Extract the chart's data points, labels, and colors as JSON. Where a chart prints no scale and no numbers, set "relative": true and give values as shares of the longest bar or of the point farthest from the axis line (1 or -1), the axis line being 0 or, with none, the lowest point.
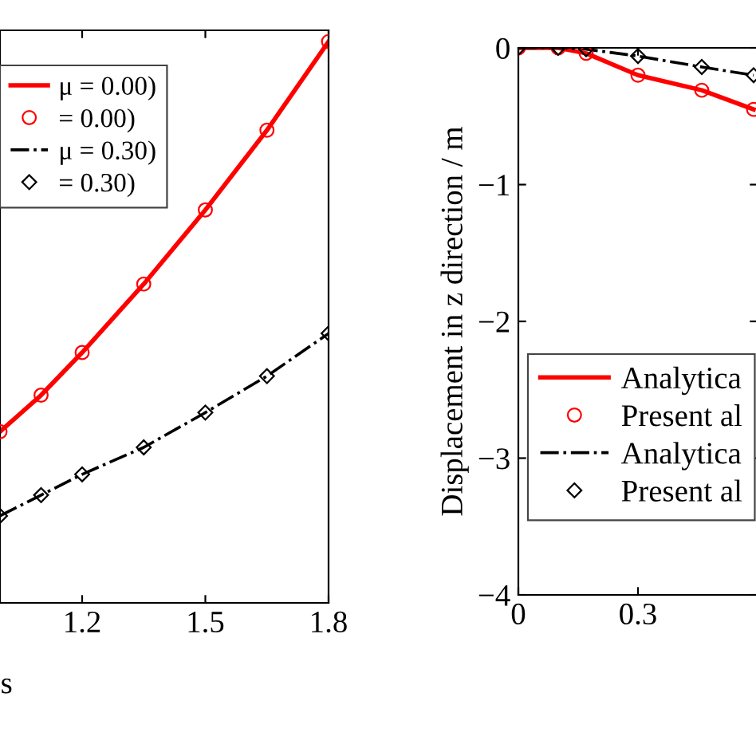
{
  "chart_data": [
    {
      "type": "line",
      "xlabel": "s",
      "xlim": [
        1.0,
        1.8
      ],
      "xticks": [
        1.2,
        1.5,
        1.8
      ],
      "relative": true,
      "tick_labels": "x",
      "legend": "top left",
      "series": [
        {
          "name": "μ = 0.00)",
          "color": "#ff0000",
          "line_style": "solid",
          "marker": "none",
          "x": [
            1.0,
            1.1,
            1.2,
            1.35,
            1.5,
            1.65,
            1.8
          ],
          "values": [
            0.305,
            0.37,
            0.446,
            0.568,
            0.7,
            0.842,
            1
          ]
        },
        {
          "name": "= 0.00)",
          "type": "scatter",
          "color": "#ff0000",
          "marker": "circle",
          "x": [
            1.0,
            1.1,
            1.2,
            1.35,
            1.5,
            1.65,
            1.8
          ],
          "values": [
            0.305,
            0.37,
            0.446,
            0.568,
            0.7,
            0.842,
            1
          ]
        },
        {
          "name": "μ = 0.30)",
          "color": "#000000",
          "line_style": "dashdot",
          "marker": "none",
          "x": [
            1.0,
            1.1,
            1.2,
            1.35,
            1.5,
            1.65,
            1.8
          ],
          "values": [
            0.155,
            0.192,
            0.229,
            0.277,
            0.339,
            0.404,
            0.48
          ]
        },
        {
          "name": "= 0.30)",
          "type": "scatter",
          "color": "#000000",
          "marker": "diamond",
          "x": [
            1.0,
            1.1,
            1.2,
            1.35,
            1.5,
            1.65,
            1.8
          ],
          "values": [
            0.155,
            0.192,
            0.229,
            0.277,
            0.339,
            0.404,
            0.48
          ]
        }
      ]
    },
    {
      "type": "line",
      "ylabel": "Displacement in z direction / m",
      "xlim": [
        0,
        0.6
      ],
      "xticks": [
        0,
        0.3
      ],
      "ylim": [
        -4,
        0
      ],
      "yticks": [
        0,
        -1,
        -2,
        -3,
        -4
      ],
      "legend": "bottom left",
      "series": [
        {
          "name": "Analytica",
          "color": "#ff0000",
          "line_style": "solid",
          "marker": "none",
          "x": [
            0,
            0.1,
            0.17,
            0.3,
            0.46,
            0.59
          ],
          "values": [
            0,
            0,
            -0.04,
            -0.2,
            -0.31,
            -0.45
          ]
        },
        {
          "name": "Present al",
          "type": "scatter",
          "color": "#ff0000",
          "marker": "circle",
          "x": [
            0,
            0.1,
            0.17,
            0.3,
            0.46,
            0.59
          ],
          "values": [
            0,
            0,
            -0.04,
            -0.2,
            -0.31,
            -0.45
          ]
        },
        {
          "name": "Analytica",
          "color": "#000000",
          "line_style": "dashdot",
          "marker": "none",
          "x": [
            0,
            0.1,
            0.17,
            0.3,
            0.46,
            0.59
          ],
          "values": [
            0,
            0,
            -0.01,
            -0.06,
            -0.14,
            -0.2
          ]
        },
        {
          "name": "Present al",
          "type": "scatter",
          "color": "#000000",
          "marker": "diamond",
          "x": [
            0,
            0.1,
            0.17,
            0.3,
            0.46,
            0.59
          ],
          "values": [
            0,
            0,
            -0.01,
            -0.06,
            -0.14,
            -0.2
          ]
        }
      ]
    }
  ]
}
